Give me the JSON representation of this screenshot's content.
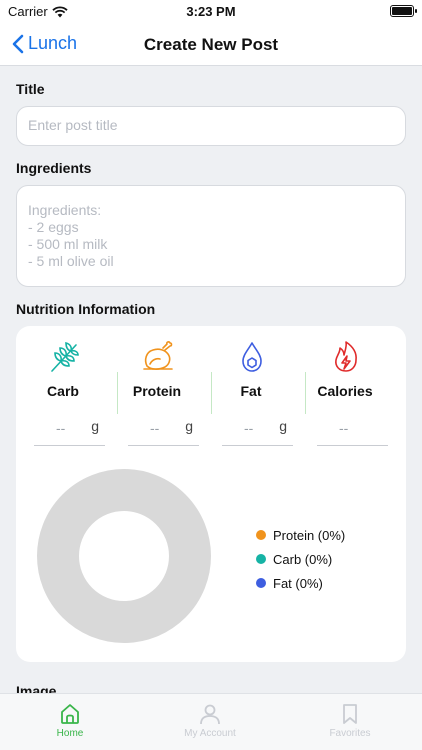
{
  "status": {
    "carrier": "Carrier",
    "time": "3:23 PM"
  },
  "nav": {
    "back_label": "Lunch",
    "title": "Create New Post"
  },
  "form": {
    "title_label": "Title",
    "title_placeholder": "Enter post title",
    "ingredients_label": "Ingredients",
    "ingredients_placeholder": "Ingredients:\n- 2 eggs\n- 500 ml milk\n- 5 ml olive oil",
    "nutrition_label": "Nutrition Information",
    "next_label": "Image"
  },
  "nutrition": {
    "items": [
      {
        "name": "Carb",
        "icon": "wheat-icon",
        "color": "#16b3a5",
        "placeholder": "--",
        "unit": "g"
      },
      {
        "name": "Protein",
        "icon": "chicken-leg-icon",
        "color": "#f0931d",
        "placeholder": "--",
        "unit": "g"
      },
      {
        "name": "Fat",
        "icon": "oil-drop-icon",
        "color": "#3e5ee0",
        "placeholder": "--",
        "unit": "g"
      },
      {
        "name": "Calories",
        "icon": "flame-icon",
        "color": "#e02b2b",
        "placeholder": "--",
        "unit": ""
      }
    ],
    "legend": [
      {
        "label": "Protein (0%)",
        "color": "#f0931d"
      },
      {
        "label": "Carb (0%)",
        "color": "#16b3a5"
      },
      {
        "label": "Fat (0%)",
        "color": "#3e5ee0"
      }
    ]
  },
  "chart_data": {
    "type": "pie",
    "categories": [
      "Protein",
      "Carb",
      "Fat"
    ],
    "values": [
      0,
      0,
      0
    ],
    "empty_color": "#d9d9d9"
  },
  "tabs": [
    {
      "label": "Home",
      "icon": "home-icon",
      "active": true
    },
    {
      "label": "My Account",
      "icon": "person-icon",
      "active": false
    },
    {
      "label": "Favorites",
      "icon": "bookmark-icon",
      "active": false
    }
  ],
  "colors": {
    "accent": "#1a73e8",
    "active_tab": "#39b54a"
  }
}
